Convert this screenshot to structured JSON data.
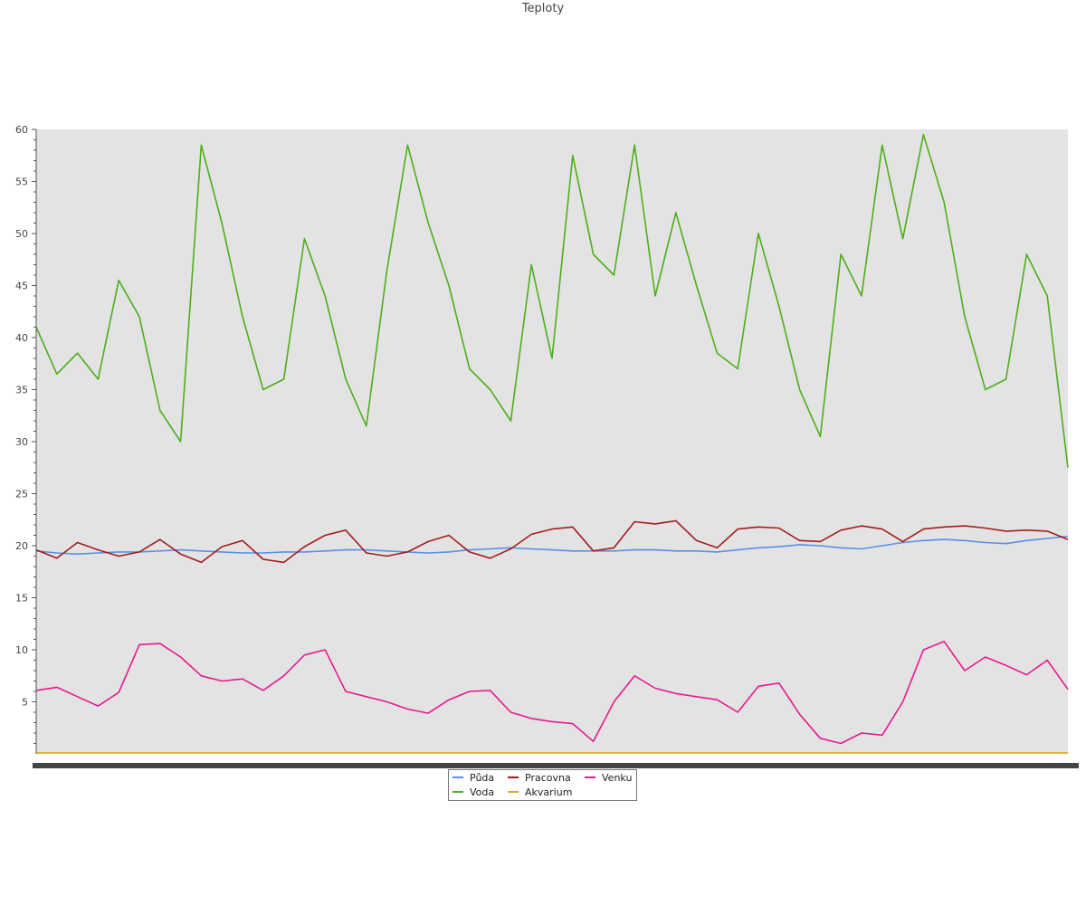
{
  "chart_data": {
    "type": "line",
    "title": "Teploty",
    "xlabel": "",
    "ylabel": "",
    "ylim": [
      0,
      60
    ],
    "yticks": [
      5,
      10,
      15,
      20,
      25,
      30,
      35,
      40,
      45,
      50,
      55,
      60
    ],
    "grid": false,
    "legend_position": "bottom-center",
    "x": [
      0,
      2,
      4,
      6,
      8,
      10,
      12,
      14,
      16,
      18,
      20,
      22,
      24,
      26,
      28,
      30,
      32,
      34,
      36,
      38,
      40,
      42,
      44,
      46,
      48,
      50,
      52,
      54,
      56,
      58,
      60,
      62,
      64,
      66,
      68,
      70,
      72,
      74,
      76,
      78,
      80,
      82,
      84,
      86,
      88,
      90,
      92,
      94,
      96,
      98,
      100
    ],
    "series": [
      {
        "name": "Půda",
        "color": "#5b8ee6",
        "values": [
          19.5,
          19.3,
          19.2,
          19.3,
          19.4,
          19.4,
          19.5,
          19.6,
          19.5,
          19.4,
          19.3,
          19.3,
          19.4,
          19.4,
          19.5,
          19.6,
          19.6,
          19.5,
          19.4,
          19.3,
          19.4,
          19.6,
          19.7,
          19.8,
          19.7,
          19.6,
          19.5,
          19.5,
          19.5,
          19.6,
          19.6,
          19.5,
          19.5,
          19.4,
          19.6,
          19.8,
          19.9,
          20.1,
          20.0,
          19.8,
          19.7,
          20.0,
          20.3,
          20.5,
          20.6,
          20.5,
          20.3,
          20.2,
          20.5,
          20.7,
          20.9
        ]
      },
      {
        "name": "Voda",
        "color": "#4caf1a",
        "values": [
          41.0,
          36.5,
          38.5,
          36.0,
          45.5,
          42.0,
          33.0,
          30.0,
          58.5,
          51.0,
          42.0,
          35.0,
          36.0,
          49.5,
          44.0,
          36.0,
          31.5,
          46.5,
          58.5,
          51.0,
          45.0,
          37.0,
          35.0,
          32.0,
          47.0,
          38.0,
          57.5,
          48.0,
          46.0,
          58.5,
          44.0,
          52.0,
          45.0,
          38.5,
          37.0,
          50.0,
          43.0,
          35.0,
          30.5,
          48.0,
          44.0,
          58.5,
          49.5,
          59.5,
          53.0,
          42.0,
          35.0,
          36.0,
          48.0,
          44.0,
          27.5
        ]
      },
      {
        "name": "Pracovna",
        "color": "#a31d1d",
        "values": [
          19.6,
          18.8,
          20.3,
          19.6,
          19.0,
          19.4,
          20.6,
          19.2,
          18.4,
          19.9,
          20.5,
          18.7,
          18.4,
          19.9,
          21.0,
          21.5,
          19.3,
          19.0,
          19.4,
          20.4,
          21.0,
          19.4,
          18.8,
          19.7,
          21.1,
          21.6,
          21.8,
          19.5,
          19.8,
          22.3,
          22.1,
          22.4,
          20.5,
          19.8,
          21.6,
          21.8,
          21.7,
          20.5,
          20.4,
          21.5,
          21.9,
          21.6,
          20.4,
          21.6,
          21.8,
          21.9,
          21.7,
          21.4,
          21.5,
          21.4,
          20.6
        ]
      },
      {
        "name": "Akvarium",
        "color": "#e0a81e",
        "values": [
          0.1,
          0.1,
          0.1,
          0.1,
          0.1,
          0.1,
          0.1,
          0.1,
          0.1,
          0.1,
          0.1,
          0.1,
          0.1,
          0.1,
          0.1,
          0.1,
          0.1,
          0.1,
          0.1,
          0.1,
          0.1,
          0.1,
          0.1,
          0.1,
          0.1,
          0.1,
          0.1,
          0.1,
          0.1,
          0.1,
          0.1,
          0.1,
          0.1,
          0.1,
          0.1,
          0.1,
          0.1,
          0.1,
          0.1,
          0.1,
          0.1,
          0.1,
          0.1,
          0.1,
          0.1,
          0.1,
          0.1,
          0.1,
          0.1,
          0.1,
          0.1
        ]
      },
      {
        "name": "Venku",
        "color": "#e8198f",
        "values": [
          6.1,
          6.4,
          5.5,
          4.6,
          5.9,
          10.5,
          10.6,
          9.3,
          7.5,
          7.0,
          7.2,
          6.1,
          7.5,
          9.5,
          10.0,
          6.0,
          5.5,
          5.0,
          4.3,
          3.9,
          5.2,
          6.0,
          6.1,
          4.0,
          3.4,
          3.1,
          2.9,
          1.2,
          5.0,
          7.5,
          6.3,
          5.8,
          5.5,
          5.2,
          4.0,
          6.5,
          6.8,
          3.8,
          1.5,
          1.0,
          2.0,
          1.8,
          5.0,
          10.0,
          10.8,
          8.0,
          9.3,
          8.5,
          7.6,
          9.0,
          6.2
        ]
      }
    ]
  }
}
